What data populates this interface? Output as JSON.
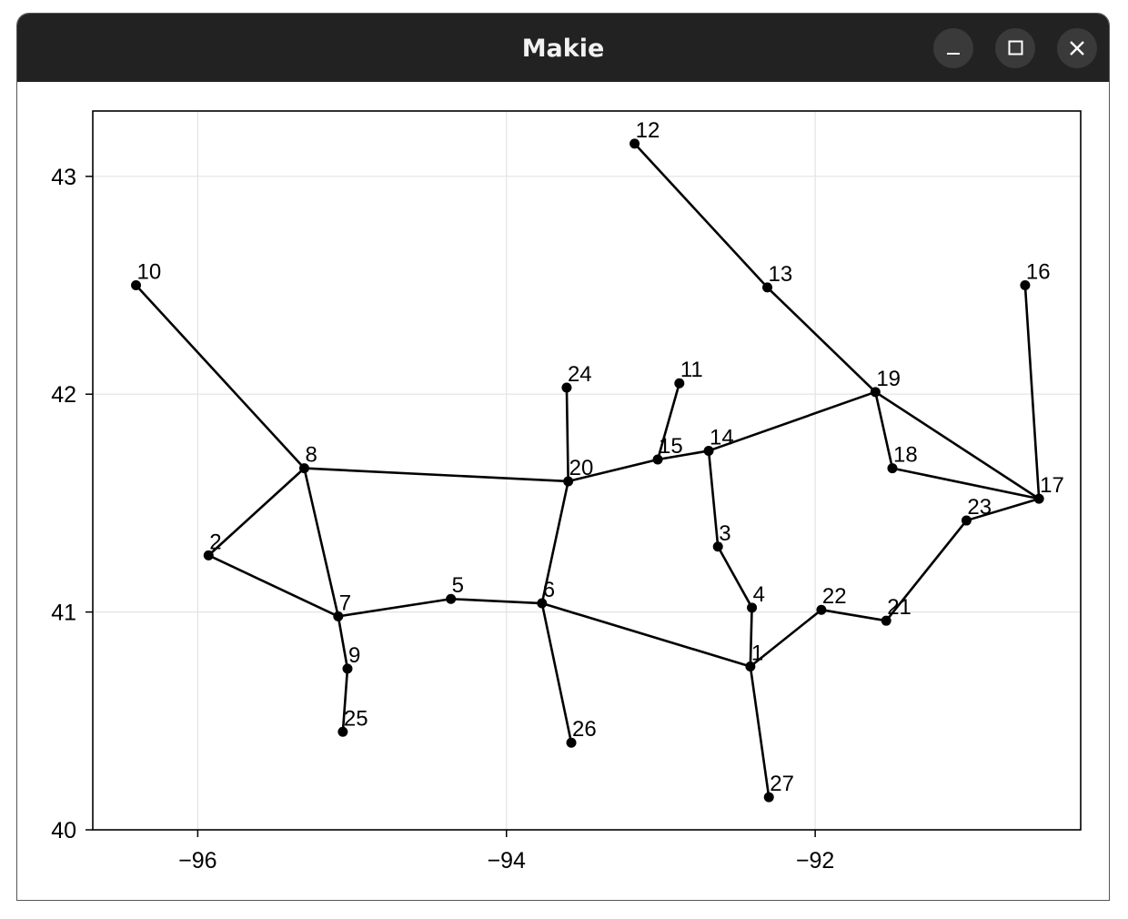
{
  "window": {
    "title": "Makie",
    "buttons": [
      "minimize",
      "maximize",
      "close"
    ]
  },
  "chart_data": {
    "type": "graph",
    "title": "",
    "xlabel": "",
    "ylabel": "",
    "xlim": [
      -96.68,
      -90.28
    ],
    "ylim": [
      40.0,
      43.3
    ],
    "x_ticks": [
      -96,
      -94,
      -92
    ],
    "x_tick_labels": [
      "−96",
      "−94",
      "−92"
    ],
    "y_ticks": [
      40,
      41,
      42,
      43
    ],
    "y_tick_labels": [
      "40",
      "41",
      "42",
      "43"
    ],
    "grid": true,
    "nodes": [
      {
        "id": "1",
        "x": -92.42,
        "y": 40.75
      },
      {
        "id": "2",
        "x": -95.93,
        "y": 41.26
      },
      {
        "id": "3",
        "x": -92.63,
        "y": 41.3
      },
      {
        "id": "4",
        "x": -92.41,
        "y": 41.02
      },
      {
        "id": "5",
        "x": -94.36,
        "y": 41.06
      },
      {
        "id": "6",
        "x": -93.77,
        "y": 41.04
      },
      {
        "id": "7",
        "x": -95.09,
        "y": 40.98
      },
      {
        "id": "8",
        "x": -95.31,
        "y": 41.66
      },
      {
        "id": "9",
        "x": -95.03,
        "y": 40.74
      },
      {
        "id": "10",
        "x": -96.4,
        "y": 42.5
      },
      {
        "id": "11",
        "x": -92.88,
        "y": 42.05
      },
      {
        "id": "12",
        "x": -93.17,
        "y": 43.15
      },
      {
        "id": "13",
        "x": -92.31,
        "y": 42.49
      },
      {
        "id": "14",
        "x": -92.69,
        "y": 41.74
      },
      {
        "id": "15",
        "x": -93.02,
        "y": 41.7
      },
      {
        "id": "16",
        "x": -90.64,
        "y": 42.5
      },
      {
        "id": "17",
        "x": -90.55,
        "y": 41.52
      },
      {
        "id": "18",
        "x": -91.5,
        "y": 41.66
      },
      {
        "id": "19",
        "x": -91.61,
        "y": 42.01
      },
      {
        "id": "20",
        "x": -93.6,
        "y": 41.6
      },
      {
        "id": "21",
        "x": -91.54,
        "y": 40.96
      },
      {
        "id": "22",
        "x": -91.96,
        "y": 41.01
      },
      {
        "id": "23",
        "x": -91.02,
        "y": 41.42
      },
      {
        "id": "24",
        "x": -93.61,
        "y": 42.03
      },
      {
        "id": "25",
        "x": -95.06,
        "y": 40.45
      },
      {
        "id": "26",
        "x": -93.58,
        "y": 40.4
      },
      {
        "id": "27",
        "x": -92.3,
        "y": 40.15
      }
    ],
    "edges": [
      [
        "10",
        "8"
      ],
      [
        "8",
        "2"
      ],
      [
        "8",
        "7"
      ],
      [
        "8",
        "20"
      ],
      [
        "2",
        "7"
      ],
      [
        "7",
        "9"
      ],
      [
        "9",
        "25"
      ],
      [
        "7",
        "5"
      ],
      [
        "5",
        "6"
      ],
      [
        "6",
        "26"
      ],
      [
        "6",
        "1"
      ],
      [
        "6",
        "20"
      ],
      [
        "20",
        "24"
      ],
      [
        "20",
        "15"
      ],
      [
        "15",
        "11"
      ],
      [
        "15",
        "14"
      ],
      [
        "14",
        "3"
      ],
      [
        "14",
        "19"
      ],
      [
        "3",
        "4"
      ],
      [
        "4",
        "1"
      ],
      [
        "1",
        "27"
      ],
      [
        "1",
        "22"
      ],
      [
        "22",
        "21"
      ],
      [
        "21",
        "23"
      ],
      [
        "23",
        "17"
      ],
      [
        "19",
        "17"
      ],
      [
        "19",
        "18"
      ],
      [
        "18",
        "17"
      ],
      [
        "19",
        "13"
      ],
      [
        "13",
        "12"
      ],
      [
        "16",
        "17"
      ]
    ]
  }
}
